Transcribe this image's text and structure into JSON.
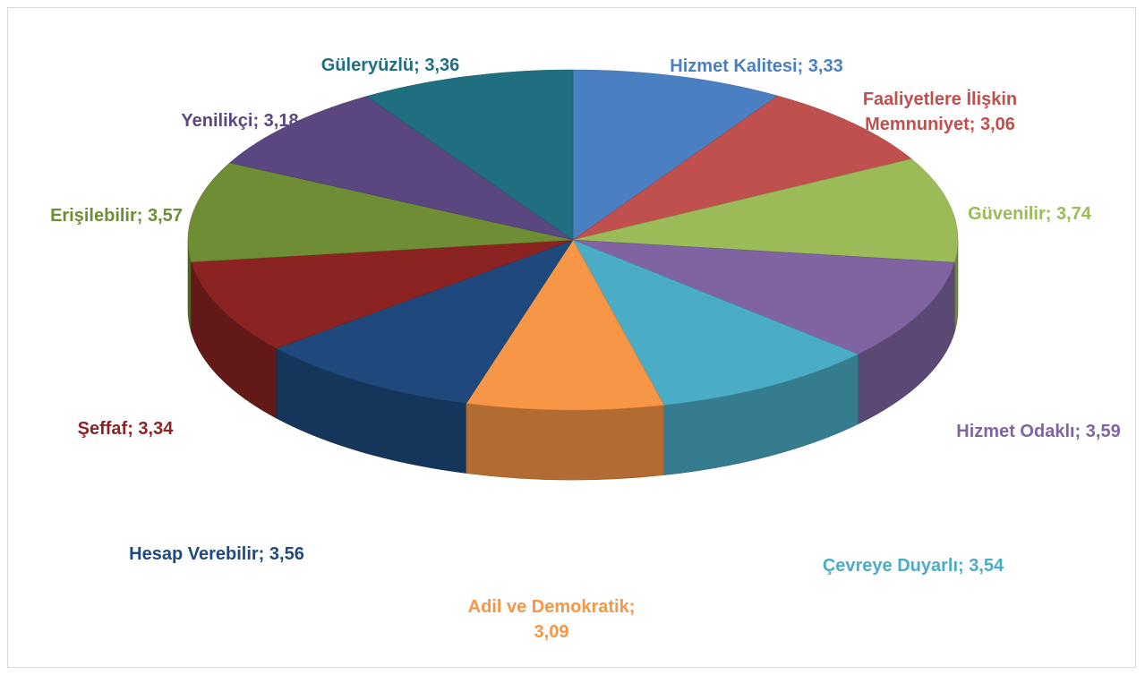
{
  "chart_data": {
    "type": "pie",
    "title": "",
    "three_d": true,
    "legend": "none",
    "categories": [
      "Hizmet Kalitesi",
      "Faaliyetlere İlişkin Memnuniyet",
      "Güvenilir",
      "Hizmet Odaklı",
      "Çevreye Duyarlı",
      "Adil ve Demokratik",
      "Hesap Verebilir",
      "Şeffaf",
      "Erişilebilir",
      "Yenilikçi",
      "Güleryüzlü"
    ],
    "values": [
      3.33,
      3.06,
      3.74,
      3.59,
      3.54,
      3.09,
      3.56,
      3.34,
      3.57,
      3.18,
      3.36
    ],
    "colors": [
      "#4a80c2",
      "#c0504d",
      "#9bbb59",
      "#8064a2",
      "#4bacc6",
      "#f79646",
      "#1f497d",
      "#8b2323",
      "#6f8d35",
      "#5b4780",
      "#1f6f80"
    ],
    "label_colors": [
      "#4a80c2",
      "#c0504d",
      "#9bbb59",
      "#8064a2",
      "#4bacc6",
      "#f79646",
      "#1f497d",
      "#8b2323",
      "#6f8d35",
      "#5b4780",
      "#1f6f80"
    ],
    "labels": [
      [
        "Hizmet Kalitesi; 3,33"
      ],
      [
        "Faaliyetlere İlişkin",
        "Memnuniyet; 3,06"
      ],
      [
        "Güvenilir; 3,74"
      ],
      [
        "Hizmet Odaklı; 3,59"
      ],
      [
        "Çevreye Duyarlı; 3,54"
      ],
      [
        "Adil ve Demokratik;",
        "3,09"
      ],
      [
        "Hesap Verebilir; 3,56"
      ],
      [
        "Şeffaf; 3,34"
      ],
      [
        "Erişilebilir; 3,57"
      ],
      [
        "Yenilikçi; 3,18"
      ],
      [
        "Güleryüzlü; 3,36"
      ]
    ]
  }
}
